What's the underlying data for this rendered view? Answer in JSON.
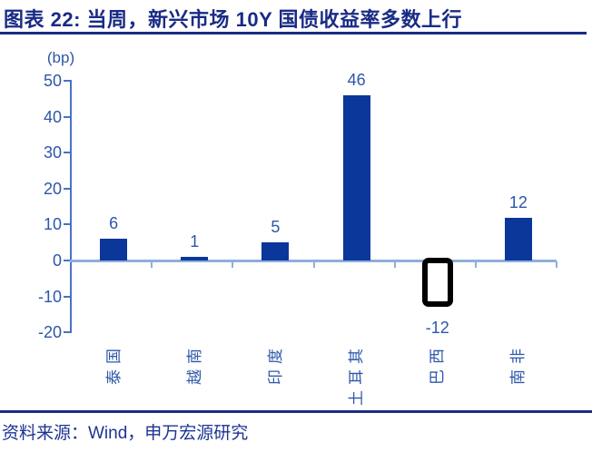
{
  "header": {
    "title": "图表 22: 当周，新兴市场 10Y 国债收益率多数上行"
  },
  "footer": {
    "source": "资料来源：Wind，申万宏源研究"
  },
  "chart_data": {
    "type": "bar",
    "title": "当周，新兴市场 10Y 国债收益率多数上行",
    "unit_label": "(bp)",
    "categories": [
      "泰国",
      "越南",
      "印度",
      "土耳其",
      "巴西",
      "南非"
    ],
    "values": [
      6,
      1,
      5,
      46,
      -12,
      12
    ],
    "data_labels": [
      "6",
      "1",
      "5",
      "46",
      "-12",
      "12"
    ],
    "xlabel": "",
    "ylabel": "(bp)",
    "ylim": [
      -20,
      50
    ],
    "yticks": [
      50,
      40,
      30,
      20,
      10,
      0,
      -10,
      -20
    ],
    "grid": "off",
    "legend": "none",
    "special_bars": {
      "巴西": "hollow-black-outline-rect"
    },
    "colors": {
      "title_navy": "#1A2B85",
      "bar_blue": "#0A3799",
      "label_blue": "#2D57A9",
      "axis_line_blue": "#4A72C4",
      "zero_line_blue": "#8FAEDC",
      "source_blue": "#1D3493",
      "special_bar_border": "#000000",
      "background": "#FFFFFF"
    }
  }
}
